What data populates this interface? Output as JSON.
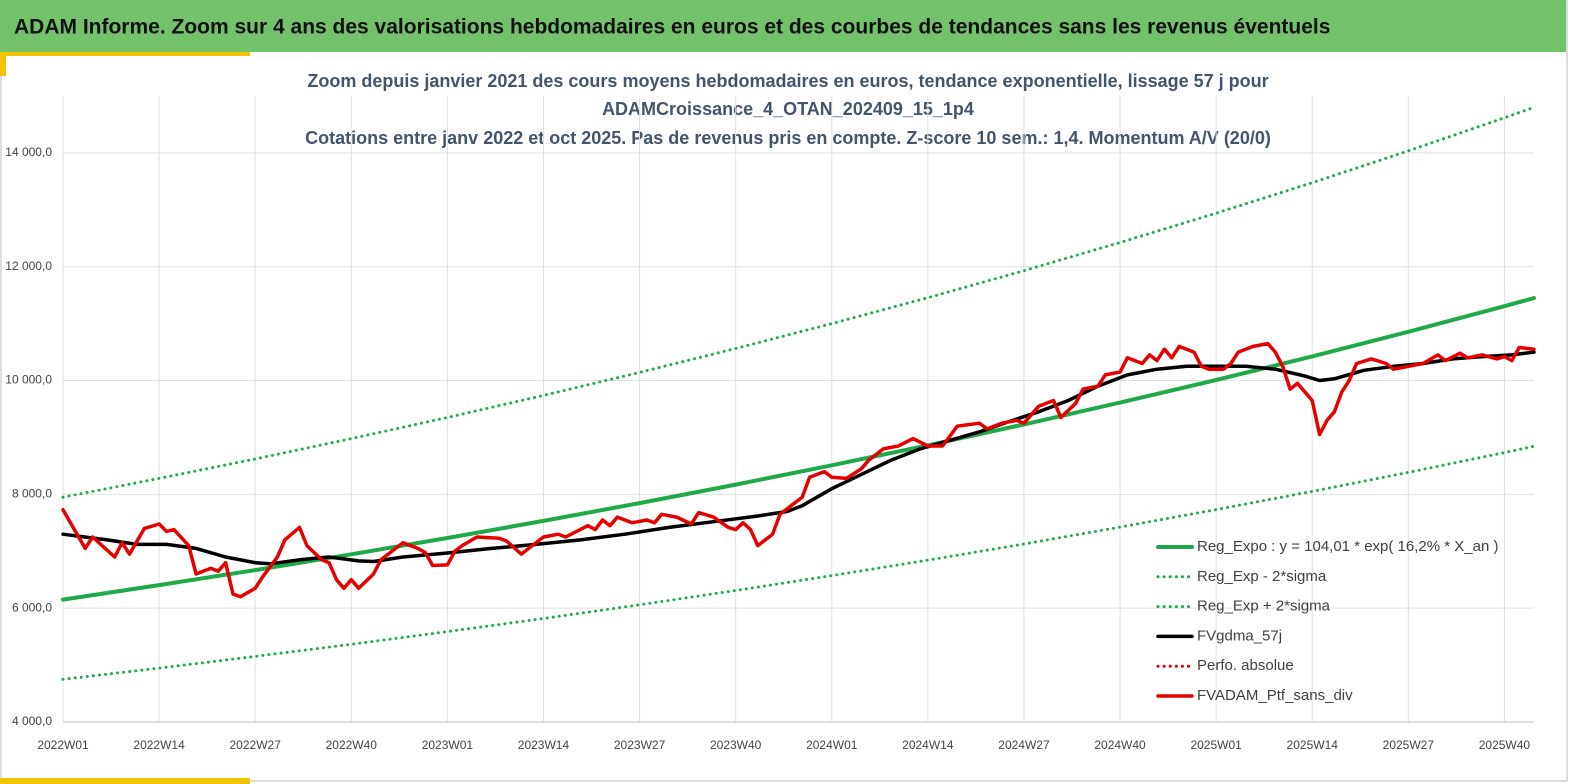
{
  "header": {
    "title": "ADAM Informe. Zoom sur 4 ans des valorisations hebdomadaires en euros et des courbes de tendances sans les revenus éventuels"
  },
  "chart_data": {
    "type": "line",
    "title": [
      "Zoom depuis janvier 2021 des cours moyens hebdomadaires  en euros, tendance exponentielle, lissage 57 j pour",
      "ADAMCroissance_4_OTAN_202409_15_1p4",
      "Cotations  entre janv 2022 et oct 2025. Pas de revenus pris en compte. Z-score 10 sem.: 1,4. Momentum A/V (20/0)"
    ],
    "xlim": [
      0,
      199
    ],
    "xticks": [
      {
        "value": 0,
        "label": "2022W01"
      },
      {
        "value": 13,
        "label": "2022W14"
      },
      {
        "value": 26,
        "label": "2022W27"
      },
      {
        "value": 39,
        "label": "2022W40"
      },
      {
        "value": 52,
        "label": "2023W01"
      },
      {
        "value": 65,
        "label": "2023W14"
      },
      {
        "value": 78,
        "label": "2023W27"
      },
      {
        "value": 91,
        "label": "2023W40"
      },
      {
        "value": 104,
        "label": "2024W01"
      },
      {
        "value": 117,
        "label": "2024W14"
      },
      {
        "value": 130,
        "label": "2024W27"
      },
      {
        "value": 143,
        "label": "2024W40"
      },
      {
        "value": 156,
        "label": "2025W01"
      },
      {
        "value": 169,
        "label": "2025W14"
      },
      {
        "value": 182,
        "label": "2025W27"
      },
      {
        "value": 195,
        "label": "2025W40"
      }
    ],
    "ylim": [
      4000,
      15000
    ],
    "yticks": [
      {
        "value": 4000,
        "label": "4 000,0"
      },
      {
        "value": 6000,
        "label": "6 000,0"
      },
      {
        "value": 8000,
        "label": "8 000,0"
      },
      {
        "value": 10000,
        "label": "10 000,0"
      },
      {
        "value": 12000,
        "label": "12 000,0"
      },
      {
        "value": 14000,
        "label": "14 000,0"
      }
    ],
    "grid": true,
    "legend": "lower right",
    "series": [
      {
        "name": "Reg_Expo : y = 104,01 * exp( 16,2% *  X_an )",
        "color": "#1faa4a",
        "style": "solid",
        "width": 4,
        "x": [
          0,
          13,
          26,
          39,
          52,
          65,
          78,
          91,
          104,
          117,
          130,
          143,
          156,
          169,
          182,
          195,
          199
        ],
        "values": [
          6150,
          6405,
          6670,
          6946,
          7234,
          7534,
          7846,
          8171,
          8510,
          8862,
          9229,
          9612,
          10010,
          10425,
          10857,
          11307,
          11450
        ]
      },
      {
        "name": "Reg_Exp - 2*sigma",
        "color": "#1faa4a",
        "style": "dotted",
        "width": 3,
        "x": [
          0,
          13,
          26,
          39,
          52,
          65,
          78,
          91,
          104,
          117,
          130,
          143,
          156,
          169,
          182,
          195,
          199
        ],
        "values": [
          4750,
          4947,
          5152,
          5365,
          5588,
          5819,
          6060,
          6311,
          6573,
          6845,
          7128,
          7424,
          7732,
          8052,
          8386,
          8734,
          8844
        ]
      },
      {
        "name": "Reg_Exp + 2*sigma",
        "color": "#1faa4a",
        "style": "dotted",
        "width": 3,
        "x": [
          0,
          13,
          26,
          39,
          52,
          65,
          78,
          91,
          104,
          117,
          130,
          143,
          156,
          169,
          182,
          195,
          199
        ],
        "values": [
          7950,
          8280,
          8622,
          8979,
          9351,
          9739,
          10143,
          10563,
          11001,
          11456,
          11930,
          12425,
          12940,
          13476,
          14035,
          14617,
          14801
        ]
      },
      {
        "name": "FVgdma_57j",
        "color": "#000000",
        "style": "solid",
        "width": 3.5,
        "x": [
          0,
          6,
          10,
          14,
          18,
          22,
          26,
          28,
          32,
          36,
          40,
          42,
          46,
          52,
          58,
          64,
          70,
          76,
          82,
          88,
          94,
          98,
          100,
          104,
          108,
          112,
          116,
          120,
          124,
          128,
          132,
          136,
          140,
          144,
          148,
          152,
          156,
          160,
          164,
          168,
          170,
          172,
          176,
          180,
          184,
          188,
          192,
          196,
          199
        ],
        "values": [
          7300,
          7200,
          7120,
          7120,
          7050,
          6900,
          6800,
          6780,
          6850,
          6900,
          6830,
          6820,
          6900,
          6970,
          7050,
          7120,
          7200,
          7300,
          7420,
          7520,
          7620,
          7700,
          7800,
          8100,
          8350,
          8600,
          8800,
          8950,
          9100,
          9280,
          9450,
          9650,
          9900,
          10100,
          10200,
          10250,
          10250,
          10250,
          10200,
          10080,
          10000,
          10030,
          10180,
          10250,
          10300,
          10380,
          10420,
          10450,
          10500
        ]
      },
      {
        "name": "Perfo. absolue",
        "color": "#e60000",
        "style": "dotted",
        "width": 3,
        "x": [],
        "values": []
      },
      {
        "name": "FVADAM_Ptf_sans_div",
        "color": "#e60000",
        "style": "solid",
        "width": 3.5,
        "x": [
          0,
          3,
          4,
          7,
          8,
          9,
          11,
          13,
          14,
          15,
          17,
          18,
          20,
          21,
          22,
          23,
          24,
          26,
          27,
          29,
          30,
          32,
          33,
          35,
          36,
          37,
          38,
          39,
          40,
          42,
          43,
          45,
          46,
          48,
          49,
          50,
          52,
          53,
          54,
          56,
          59,
          60,
          62,
          63,
          65,
          67,
          68,
          71,
          72,
          73,
          74,
          75,
          77,
          79,
          80,
          81,
          83,
          85,
          86,
          88,
          90,
          91,
          92,
          93,
          94,
          96,
          97,
          99,
          100,
          101,
          103,
          104,
          106,
          108,
          109,
          111,
          113,
          115,
          117,
          119,
          121,
          124,
          125,
          127,
          129,
          130,
          132,
          134,
          135,
          137,
          138,
          140,
          141,
          143,
          144,
          146,
          147,
          148,
          149,
          150,
          151,
          153,
          154,
          155,
          157,
          158,
          159,
          161,
          163,
          164,
          165,
          166,
          167,
          169,
          170,
          171,
          172,
          173,
          174,
          175,
          177,
          179,
          180,
          182,
          184,
          186,
          187,
          189,
          190,
          192,
          194,
          195,
          196,
          197,
          199
        ],
        "values": [
          7730,
          7050,
          7250,
          6900,
          7150,
          6950,
          7400,
          7480,
          7350,
          7380,
          7100,
          6600,
          6700,
          6650,
          6800,
          6250,
          6200,
          6350,
          6550,
          6900,
          7200,
          7420,
          7100,
          6850,
          6800,
          6500,
          6350,
          6500,
          6350,
          6600,
          6850,
          7050,
          7150,
          7050,
          6980,
          6750,
          6760,
          7000,
          7100,
          7250,
          7230,
          7180,
          6950,
          7050,
          7250,
          7300,
          7250,
          7450,
          7380,
          7550,
          7450,
          7600,
          7500,
          7550,
          7500,
          7650,
          7600,
          7480,
          7680,
          7600,
          7420,
          7380,
          7500,
          7380,
          7100,
          7300,
          7650,
          7850,
          7950,
          8300,
          8400,
          8300,
          8280,
          8450,
          8600,
          8800,
          8850,
          8980,
          8850,
          8850,
          9200,
          9250,
          9150,
          9250,
          9300,
          9250,
          9550,
          9650,
          9350,
          9600,
          9850,
          9900,
          10100,
          10150,
          10400,
          10300,
          10450,
          10350,
          10550,
          10400,
          10600,
          10500,
          10250,
          10200,
          10200,
          10300,
          10500,
          10600,
          10650,
          10500,
          10250,
          9850,
          9950,
          9650,
          9050,
          9300,
          9450,
          9800,
          10000,
          10300,
          10380,
          10300,
          10200,
          10250,
          10300,
          10450,
          10350,
          10480,
          10400,
          10450,
          10380,
          10420,
          10350,
          10580,
          10550
        ]
      }
    ]
  }
}
